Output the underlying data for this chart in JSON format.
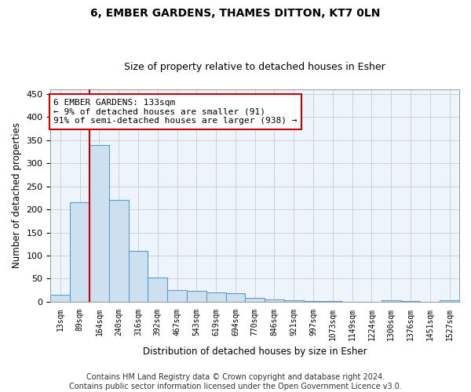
{
  "title_line1": "6, EMBER GARDENS, THAMES DITTON, KT7 0LN",
  "title_line2": "Size of property relative to detached houses in Esher",
  "xlabel": "Distribution of detached houses by size in Esher",
  "ylabel": "Number of detached properties",
  "categories": [
    "13sqm",
    "89sqm",
    "164sqm",
    "240sqm",
    "316sqm",
    "392sqm",
    "467sqm",
    "543sqm",
    "619sqm",
    "694sqm",
    "770sqm",
    "846sqm",
    "921sqm",
    "997sqm",
    "1073sqm",
    "1149sqm",
    "1224sqm",
    "1300sqm",
    "1376sqm",
    "1451sqm",
    "1527sqm"
  ],
  "values": [
    15,
    215,
    340,
    220,
    111,
    53,
    25,
    24,
    20,
    18,
    8,
    5,
    3,
    2,
    2,
    0,
    0,
    3,
    2,
    0,
    3
  ],
  "bar_color": "#cce0f0",
  "bar_edgecolor": "#5b9bd5",
  "bar_linewidth": 0.8,
  "vline_x_index": 1.5,
  "vline_color": "#cc0000",
  "annotation_text": "6 EMBER GARDENS: 133sqm\n← 9% of detached houses are smaller (91)\n91% of semi-detached houses are larger (938) →",
  "annotation_box_color": "#ffffff",
  "annotation_box_edgecolor": "#cc0000",
  "annotation_fontsize": 8.0,
  "ylim": [
    0,
    460
  ],
  "yticks": [
    0,
    50,
    100,
    150,
    200,
    250,
    300,
    350,
    400,
    450
  ],
  "grid_color": "#cccccc",
  "bg_color": "#eef4fb",
  "footer_line1": "Contains HM Land Registry data © Crown copyright and database right 2024.",
  "footer_line2": "Contains public sector information licensed under the Open Government Licence v3.0.",
  "footer_fontsize": 7.0,
  "title1_fontsize": 10,
  "title2_fontsize": 9
}
